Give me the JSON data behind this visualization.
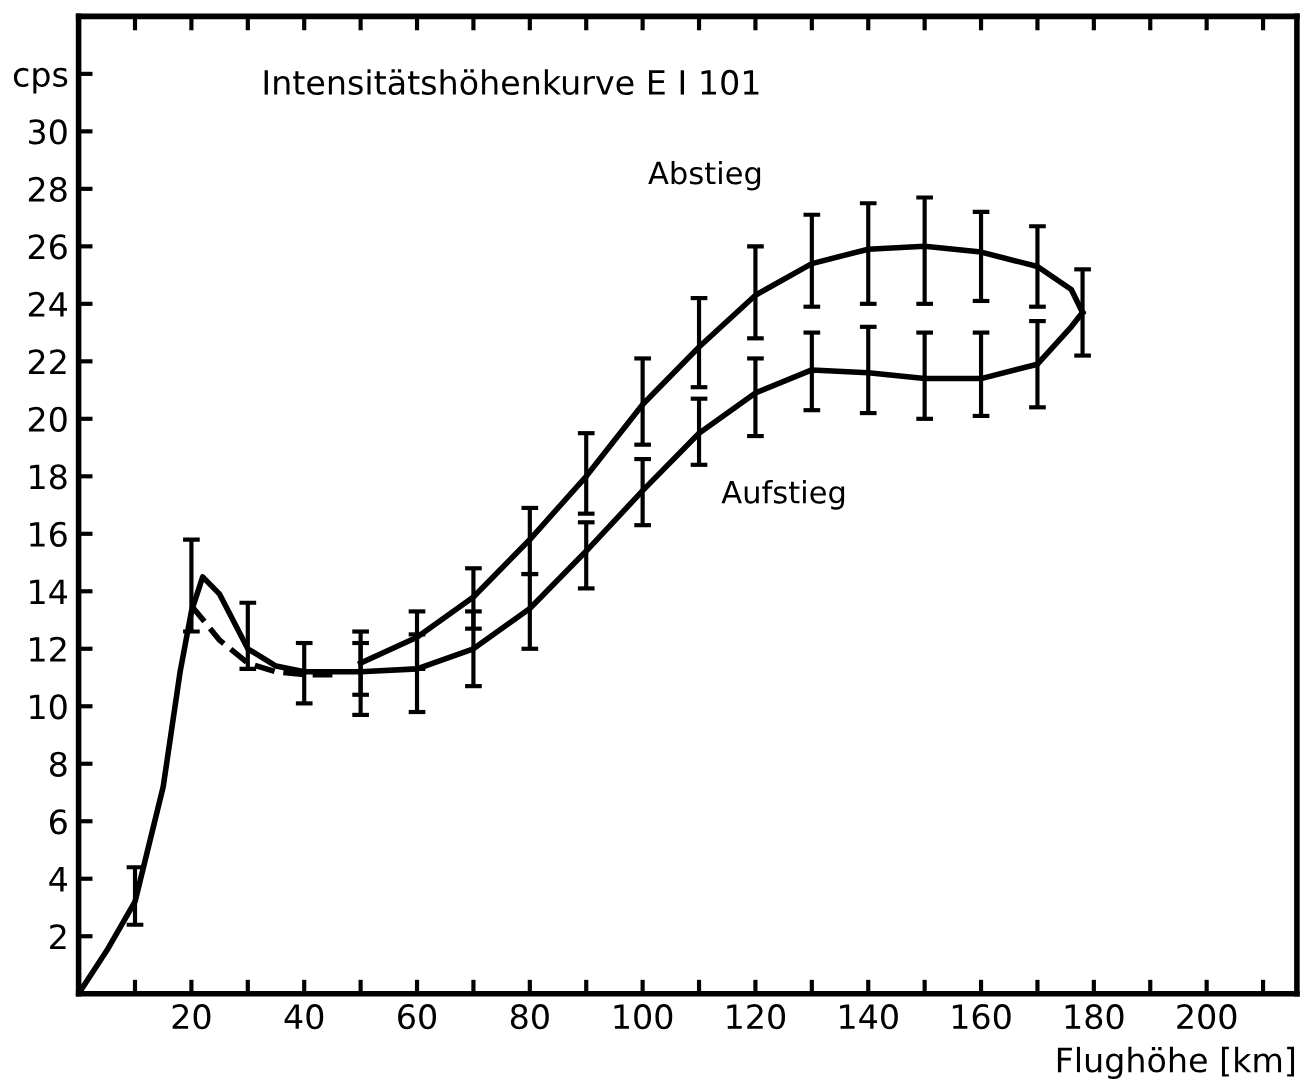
{
  "chart_data": {
    "type": "line",
    "title": "Intensitätshöhenkurve E I 101",
    "xlabel": "Flughöhe [km]",
    "xlim": [
      0,
      216
    ],
    "ylim": [
      0,
      34
    ],
    "xticks": [
      {
        "value": 10,
        "label": null
      },
      20,
      {
        "value": 30,
        "label": null
      },
      40,
      {
        "value": 50,
        "label": null
      },
      60,
      {
        "value": 70,
        "label": null
      },
      80,
      {
        "value": 90,
        "label": null
      },
      100,
      {
        "value": 110,
        "label": null
      },
      120,
      {
        "value": 130,
        "label": null
      },
      140,
      {
        "value": 150,
        "label": null
      },
      160,
      {
        "value": 170,
        "label": null
      },
      180,
      {
        "value": 190,
        "label": null
      },
      200,
      {
        "value": 210,
        "label": null
      }
    ],
    "yticks": [
      2,
      4,
      6,
      8,
      10,
      12,
      14,
      16,
      18,
      20,
      22,
      24,
      26,
      28,
      30,
      {
        "value": 32,
        "label": "cps"
      }
    ],
    "grid": false,
    "legend": false,
    "marker": "none",
    "line_style": "solid",
    "series": [
      {
        "name": "Abstieg",
        "color": "#000000",
        "x": [
          50,
          60,
          70,
          80,
          90,
          100,
          110,
          120,
          130,
          140,
          150,
          160,
          170,
          176,
          178
        ],
        "values": [
          11.5,
          12.4,
          13.8,
          15.8,
          18.0,
          20.5,
          22.5,
          24.3,
          25.4,
          25.9,
          26.0,
          25.8,
          25.3,
          24.5,
          23.7
        ],
        "errors": [
          [
            9.7,
            12.6
          ],
          [
            11.3,
            13.3
          ],
          [
            12.7,
            14.8
          ],
          [
            14.6,
            16.9
          ],
          [
            16.7,
            19.5
          ],
          [
            19.1,
            22.1
          ],
          [
            21.1,
            24.2
          ],
          [
            22.8,
            26.0
          ],
          [
            23.9,
            27.1
          ],
          [
            24.0,
            27.5
          ],
          [
            24.0,
            27.7
          ],
          [
            24.1,
            27.2
          ],
          [
            23.9,
            26.7
          ],
          null,
          null
        ]
      },
      {
        "name": "Aufstieg",
        "color": "#000000",
        "x": [
          0,
          5,
          10,
          15,
          18,
          20,
          22,
          25,
          30,
          35,
          40,
          50,
          60,
          70,
          80,
          90,
          100,
          110,
          120,
          130,
          140,
          150,
          160,
          170,
          176,
          178
        ],
        "values": [
          0,
          1.5,
          3.2,
          7.2,
          11.2,
          13.3,
          14.5,
          13.9,
          12.0,
          11.4,
          11.2,
          11.2,
          11.3,
          12.0,
          13.4,
          15.4,
          17.5,
          19.5,
          20.9,
          21.7,
          21.6,
          21.4,
          21.4,
          21.9,
          23.2,
          23.7
        ],
        "errors": [
          null,
          null,
          [
            2.4,
            4.4
          ],
          null,
          null,
          [
            12.6,
            15.8
          ],
          null,
          null,
          [
            11.3,
            13.6
          ],
          null,
          [
            10.1,
            12.2
          ],
          [
            10.4,
            12.2
          ],
          [
            9.8,
            12.5
          ],
          [
            10.7,
            13.3
          ],
          [
            12.0,
            14.6
          ],
          [
            14.1,
            16.4
          ],
          [
            16.3,
            18.6
          ],
          [
            18.4,
            20.7
          ],
          [
            19.4,
            22.1
          ],
          [
            20.3,
            23.0
          ],
          [
            20.2,
            23.2
          ],
          [
            20.0,
            23.0
          ],
          [
            20.1,
            23.0
          ],
          [
            20.4,
            23.4
          ],
          null,
          [
            22.2,
            25.2
          ]
        ]
      },
      {
        "color": "#000000",
        "line_style": "dashed",
        "x": [
          20,
          25,
          30,
          35,
          40,
          45
        ],
        "values": [
          13.5,
          12.3,
          11.5,
          11.2,
          11.1,
          11.1
        ]
      }
    ]
  }
}
